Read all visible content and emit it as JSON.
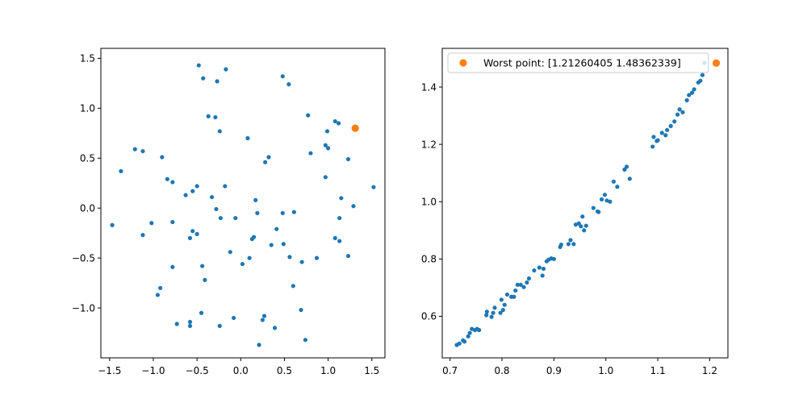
{
  "chart_data": [
    {
      "type": "scatter",
      "title": "",
      "xlabel": "",
      "ylabel": "",
      "xlim": [
        -1.6,
        1.65
      ],
      "ylim": [
        -1.5,
        1.6
      ],
      "xticks": [
        -1.5,
        -1.0,
        -0.5,
        0.0,
        0.5,
        1.0,
        1.5
      ],
      "xtick_labels": [
        "−1.5",
        "−1.0",
        "−0.5",
        "0.0",
        "0.5",
        "1.0",
        "1.5"
      ],
      "yticks": [
        -1.0,
        -0.5,
        0.0,
        0.5,
        1.0,
        1.5
      ],
      "ytick_labels": [
        "−1.0",
        "−0.5",
        "0.0",
        "0.5",
        "1.0",
        "1.5"
      ],
      "grid": false,
      "legend": "none",
      "series": [
        {
          "color": "#1f77b4",
          "marker_size": "small",
          "points": [
            [
              -0.48,
              1.43
            ],
            [
              -0.43,
              1.3
            ],
            [
              -0.27,
              1.27
            ],
            [
              -0.17,
              1.39
            ],
            [
              0.48,
              1.32
            ],
            [
              0.55,
              1.24
            ],
            [
              -0.37,
              0.92
            ],
            [
              -0.29,
              0.91
            ],
            [
              -0.24,
              0.77
            ],
            [
              0.08,
              0.7
            ],
            [
              0.77,
              0.93
            ],
            [
              0.99,
              0.77
            ],
            [
              1.08,
              0.87
            ],
            [
              1.12,
              0.85
            ],
            [
              0.97,
              0.63
            ],
            [
              1.0,
              0.6
            ],
            [
              0.8,
              0.55
            ],
            [
              -1.21,
              0.59
            ],
            [
              -1.12,
              0.57
            ],
            [
              -0.9,
              0.51
            ],
            [
              -1.37,
              0.37
            ],
            [
              0.32,
              0.51
            ],
            [
              0.28,
              0.46
            ],
            [
              1.23,
              0.49
            ],
            [
              0.97,
              0.31
            ],
            [
              -0.84,
              0.29
            ],
            [
              -0.78,
              0.26
            ],
            [
              -0.5,
              0.22
            ],
            [
              -0.18,
              0.22
            ],
            [
              -0.63,
              0.13
            ],
            [
              -0.55,
              0.17
            ],
            [
              -0.33,
              0.11
            ],
            [
              1.15,
              0.1
            ],
            [
              0.17,
              0.08
            ],
            [
              -0.28,
              -0.01
            ],
            [
              -0.23,
              -0.1
            ],
            [
              -0.06,
              -0.1
            ],
            [
              0.19,
              -0.05
            ],
            [
              0.48,
              -0.05
            ],
            [
              0.61,
              -0.04
            ],
            [
              1.29,
              0.02
            ],
            [
              1.52,
              0.21
            ],
            [
              -1.47,
              -0.17
            ],
            [
              -1.02,
              -0.15
            ],
            [
              -0.78,
              -0.14
            ],
            [
              1.13,
              -0.1
            ],
            [
              -1.12,
              -0.27
            ],
            [
              -0.55,
              -0.23
            ],
            [
              -0.5,
              -0.26
            ],
            [
              -0.58,
              -0.3
            ],
            [
              0.15,
              -0.29
            ],
            [
              0.13,
              -0.31
            ],
            [
              0.41,
              -0.21
            ],
            [
              0.35,
              -0.37
            ],
            [
              0.49,
              -0.36
            ],
            [
              1.08,
              -0.3
            ],
            [
              1.13,
              -0.33
            ],
            [
              -0.12,
              -0.44
            ],
            [
              0.1,
              -0.5
            ],
            [
              0.56,
              -0.49
            ],
            [
              0.7,
              -0.54
            ],
            [
              0.87,
              -0.5
            ],
            [
              1.23,
              -0.48
            ],
            [
              0.02,
              -0.56
            ],
            [
              -0.44,
              -0.58
            ],
            [
              -0.78,
              -0.59
            ],
            [
              -0.41,
              -0.72
            ],
            [
              -0.92,
              -0.8
            ],
            [
              -0.95,
              -0.87
            ],
            [
              0.6,
              -0.78
            ],
            [
              0.69,
              -1.02
            ],
            [
              -0.45,
              -1.05
            ],
            [
              -0.58,
              -1.14
            ],
            [
              -0.58,
              -1.18
            ],
            [
              -0.73,
              -1.16
            ],
            [
              -0.24,
              -1.18
            ],
            [
              -0.08,
              -1.1
            ],
            [
              0.27,
              -1.08
            ],
            [
              0.25,
              -1.12
            ],
            [
              0.39,
              -1.2
            ],
            [
              0.74,
              -1.32
            ],
            [
              0.21,
              -1.37
            ]
          ]
        },
        {
          "color": "#ff7f0e",
          "marker_size": "large",
          "points": [
            [
              1.31,
              0.8
            ]
          ]
        }
      ]
    },
    {
      "type": "scatter",
      "title": "",
      "xlabel": "",
      "ylabel": "",
      "xlim": [
        0.685,
        1.235
      ],
      "ylim": [
        0.455,
        1.535
      ],
      "xticks": [
        0.7,
        0.8,
        0.9,
        1.0,
        1.1,
        1.2
      ],
      "xtick_labels": [
        "0.7",
        "0.8",
        "0.9",
        "1.0",
        "1.1",
        "1.2"
      ],
      "yticks": [
        0.6,
        0.8,
        1.0,
        1.2,
        1.4
      ],
      "ytick_labels": [
        "0.6",
        "0.8",
        "1.0",
        "1.2",
        "1.4"
      ],
      "grid": false,
      "legend": "top-left",
      "series": [
        {
          "color": "#1f77b4",
          "marker_size": "small",
          "points": [
            [
              0.713,
              0.5
            ],
            [
              0.718,
              0.505
            ],
            [
              0.725,
              0.516
            ],
            [
              0.728,
              0.512
            ],
            [
              0.735,
              0.53
            ],
            [
              0.738,
              0.542
            ],
            [
              0.742,
              0.556
            ],
            [
              0.748,
              0.552
            ],
            [
              0.752,
              0.556
            ],
            [
              0.756,
              0.552
            ],
            [
              0.77,
              0.604
            ],
            [
              0.771,
              0.616
            ],
            [
              0.78,
              0.598
            ],
            [
              0.783,
              0.612
            ],
            [
              0.786,
              0.63
            ],
            [
              0.797,
              0.612
            ],
            [
              0.799,
              0.658
            ],
            [
              0.802,
              0.622
            ],
            [
              0.805,
              0.64
            ],
            [
              0.81,
              0.676
            ],
            [
              0.818,
              0.668
            ],
            [
              0.823,
              0.668
            ],
            [
              0.826,
              0.69
            ],
            [
              0.83,
              0.71
            ],
            [
              0.836,
              0.71
            ],
            [
              0.842,
              0.702
            ],
            [
              0.848,
              0.718
            ],
            [
              0.852,
              0.732
            ],
            [
              0.862,
              0.76
            ],
            [
              0.872,
              0.77
            ],
            [
              0.878,
              0.742
            ],
            [
              0.88,
              0.766
            ],
            [
              0.886,
              0.792
            ],
            [
              0.89,
              0.798
            ],
            [
              0.895,
              0.802
            ],
            [
              0.9,
              0.8
            ],
            [
              0.912,
              0.842
            ],
            [
              0.914,
              0.85
            ],
            [
              0.928,
              0.852
            ],
            [
              0.932,
              0.866
            ],
            [
              0.938,
              0.852
            ],
            [
              0.942,
              0.92
            ],
            [
              0.948,
              0.924
            ],
            [
              0.952,
              0.914
            ],
            [
              0.955,
              0.948
            ],
            [
              0.958,
              0.9
            ],
            [
              0.962,
              0.916
            ],
            [
              0.976,
              0.978
            ],
            [
              0.984,
              0.966
            ],
            [
              0.986,
              0.964
            ],
            [
              0.992,
              1.008
            ],
            [
              0.998,
              1.024
            ],
            [
              1.002,
              1.004
            ],
            [
              1.008,
              1.0
            ],
            [
              1.015,
              1.07
            ],
            [
              1.022,
              1.052
            ],
            [
              1.036,
              1.112
            ],
            [
              1.04,
              1.122
            ],
            [
              1.046,
              1.08
            ],
            [
              1.09,
              1.192
            ],
            [
              1.092,
              1.226
            ],
            [
              1.098,
              1.212
            ],
            [
              1.1,
              1.214
            ],
            [
              1.108,
              1.24
            ],
            [
              1.115,
              1.232
            ],
            [
              1.118,
              1.25
            ],
            [
              1.125,
              1.264
            ],
            [
              1.132,
              1.28
            ],
            [
              1.138,
              1.304
            ],
            [
              1.142,
              1.322
            ],
            [
              1.148,
              1.312
            ],
            [
              1.156,
              1.354
            ],
            [
              1.16,
              1.372
            ],
            [
              1.166,
              1.38
            ],
            [
              1.17,
              1.392
            ],
            [
              1.178,
              1.416
            ],
            [
              1.182,
              1.422
            ],
            [
              1.186,
              1.442
            ],
            [
              1.19,
              1.484
            ]
          ]
        },
        {
          "name": "Worst point: [1.21260405 1.48362339]",
          "color": "#ff7f0e",
          "marker_size": "large",
          "points": [
            [
              1.21260405,
              1.48362339
            ]
          ]
        }
      ]
    }
  ]
}
